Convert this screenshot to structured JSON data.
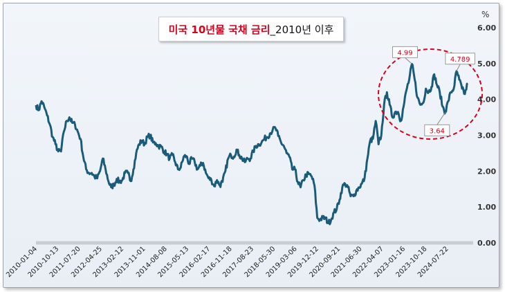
{
  "chart_data": {
    "type": "line",
    "title_red": "미국 10년물 국채 금리",
    "title_black": "_2010년 이후",
    "unit_label": "%",
    "y_ticks": [
      "0.00",
      "1.00",
      "2.00",
      "3.00",
      "4.00",
      "5.00",
      "6.00"
    ],
    "ylim": [
      0,
      6
    ],
    "x_tick_labels": [
      "2010-01-04",
      "2010-10-13",
      "2011-07-20",
      "2012-04-25",
      "2013-02-12",
      "2013-11-01",
      "2014-08-08",
      "2015-05-13",
      "2016-02-17",
      "2016-11-18",
      "2017-08-23",
      "2018-05-30",
      "2019-03-06",
      "2019-12-12",
      "2020-09-21",
      "2021-06-30",
      "2022-04-07",
      "2023-01-16",
      "2023-10-18",
      "2024-07-22"
    ],
    "series": [
      {
        "name": "",
        "color": "#1b5b7a",
        "values": [
          3.84,
          3.7,
          3.95,
          3.78,
          3.55,
          3.3,
          2.95,
          2.75,
          2.55,
          2.55,
          3.1,
          3.4,
          3.5,
          3.35,
          3.3,
          3.1,
          2.9,
          2.4,
          2.05,
          1.95,
          1.95,
          1.85,
          1.8,
          2.0,
          2.35,
          2.05,
          1.72,
          1.55,
          1.62,
          1.78,
          1.7,
          1.75,
          1.95,
          1.95,
          1.72,
          2.05,
          2.5,
          2.75,
          2.85,
          2.75,
          2.95,
          3.0,
          2.8,
          2.78,
          2.7,
          2.68,
          2.55,
          2.48,
          2.35,
          2.45,
          2.25,
          2.05,
          2.1,
          2.4,
          2.42,
          2.2,
          2.35,
          2.25,
          2.05,
          2.15,
          2.23,
          1.95,
          1.8,
          1.75,
          1.58,
          1.75,
          1.6,
          1.7,
          2.0,
          2.35,
          2.45,
          2.4,
          2.6,
          2.45,
          2.35,
          2.25,
          2.35,
          2.35,
          2.55,
          2.7,
          2.75,
          2.8,
          2.9,
          2.95,
          3.05,
          3.15,
          3.2,
          2.98,
          2.8,
          2.7,
          2.5,
          2.4,
          2.05,
          2.05,
          1.7,
          1.55,
          1.75,
          1.9,
          1.92,
          1.85,
          1.6,
          0.7,
          0.65,
          0.7,
          0.68,
          0.55,
          0.65,
          0.85,
          0.95,
          1.2,
          1.55,
          1.65,
          1.55,
          1.3,
          1.3,
          1.45,
          1.55,
          1.65,
          1.8,
          2.35,
          2.85,
          2.9,
          3.4,
          2.75,
          3.0,
          3.85,
          4.2,
          3.85,
          3.5,
          3.65,
          3.65,
          3.4,
          3.8,
          4.25,
          4.55,
          4.99,
          4.55,
          4.05,
          3.85,
          3.9,
          4.3,
          4.2,
          4.35,
          4.7,
          4.4,
          4.2,
          3.8,
          3.64,
          3.95,
          4.2,
          4.3,
          4.789,
          4.55,
          4.3,
          4.15,
          4.45
        ]
      }
    ],
    "annotations": [
      {
        "text": "4.99"
      },
      {
        "text": "3.64"
      },
      {
        "text": "4.789"
      }
    ]
  }
}
